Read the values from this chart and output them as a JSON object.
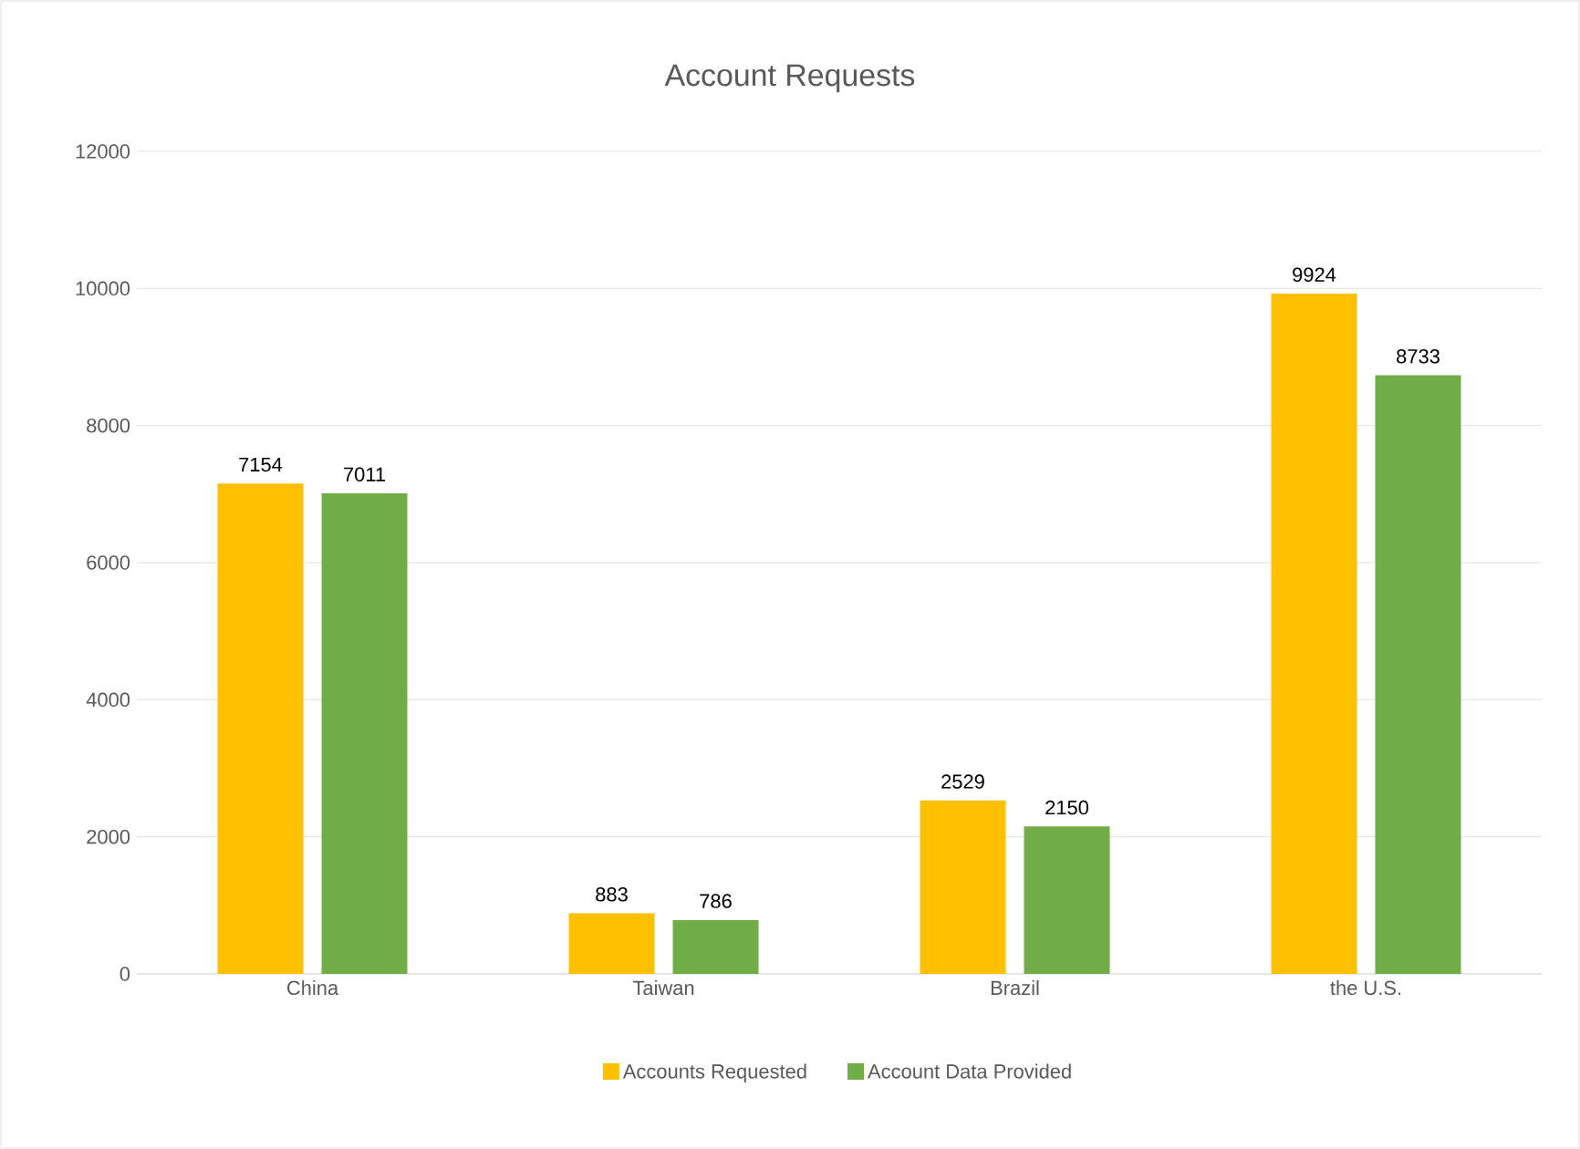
{
  "chart_data": {
    "type": "bar",
    "title": "Account Requests",
    "categories": [
      "China",
      "Taiwan",
      "Brazil",
      "the U.S."
    ],
    "series": [
      {
        "name": "Accounts Requested",
        "color": "#ffc000",
        "values": [
          7154,
          883,
          2529,
          9924
        ]
      },
      {
        "name": "Account Data Provided",
        "color": "#70ad47",
        "values": [
          7011,
          786,
          2150,
          8733
        ]
      }
    ],
    "ylim": [
      0,
      12000
    ],
    "yticks": [
      0,
      2000,
      4000,
      6000,
      8000,
      10000,
      12000
    ],
    "grid": "y",
    "legend": "bottom",
    "data_labels": true
  }
}
